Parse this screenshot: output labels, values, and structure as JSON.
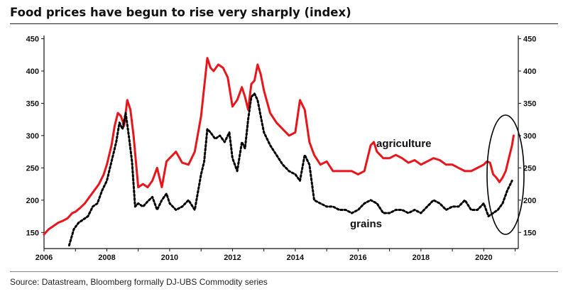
{
  "title": "Food prices have begun to rise very sharply (index)",
  "source": "Source: Datastream, Bloomberg formally DJ-UBS Commodity series",
  "colors": {
    "agriculture": "#e8151b",
    "grains": "#000000",
    "axis": "#111111"
  },
  "chart_data": {
    "type": "line",
    "title": "Food prices have begun to rise very sharply (index)",
    "xlabel": "",
    "ylabel": "",
    "xlim": [
      2006,
      2021.1
    ],
    "ylim": [
      125,
      455
    ],
    "xticks": [
      2006,
      2008,
      2010,
      2012,
      2014,
      2016,
      2018,
      2020
    ],
    "yticks": [
      150,
      200,
      250,
      300,
      350,
      400,
      450
    ],
    "ytick_labels": [
      "150",
      "200",
      "250",
      "300",
      "350",
      "400",
      "450"
    ],
    "y_axis_sides": [
      "left",
      "right"
    ],
    "grid": false,
    "annotation": "ellipse highlighting late-2020 rise",
    "series": [
      {
        "name": "agriculture",
        "style": "solid",
        "x": [
          2006.0,
          2006.15,
          2006.3,
          2006.45,
          2006.6,
          2006.75,
          2006.9,
          2007.0,
          2007.15,
          2007.3,
          2007.45,
          2007.6,
          2007.75,
          2007.9,
          2008.0,
          2008.15,
          2008.25,
          2008.35,
          2008.45,
          2008.55,
          2008.65,
          2008.75,
          2008.85,
          2009.0,
          2009.15,
          2009.3,
          2009.45,
          2009.6,
          2009.75,
          2009.9,
          2010.0,
          2010.2,
          2010.4,
          2010.6,
          2010.8,
          2011.0,
          2011.1,
          2011.2,
          2011.3,
          2011.4,
          2011.55,
          2011.7,
          2011.85,
          2012.0,
          2012.15,
          2012.3,
          2012.4,
          2012.5,
          2012.6,
          2012.7,
          2012.8,
          2012.9,
          2013.0,
          2013.2,
          2013.4,
          2013.6,
          2013.8,
          2014.0,
          2014.15,
          2014.3,
          2014.45,
          2014.6,
          2014.8,
          2015.0,
          2015.2,
          2015.4,
          2015.6,
          2015.8,
          2016.0,
          2016.2,
          2016.4,
          2016.5,
          2016.6,
          2016.8,
          2017.0,
          2017.2,
          2017.4,
          2017.6,
          2017.8,
          2018.0,
          2018.2,
          2018.4,
          2018.6,
          2018.8,
          2019.0,
          2019.2,
          2019.4,
          2019.6,
          2019.8,
          2020.0,
          2020.1,
          2020.2,
          2020.3,
          2020.4,
          2020.5,
          2020.6,
          2020.7,
          2020.8,
          2020.9,
          2020.95
        ],
        "y": [
          147,
          155,
          160,
          165,
          168,
          172,
          180,
          182,
          188,
          195,
          205,
          215,
          225,
          240,
          255,
          285,
          315,
          335,
          330,
          315,
          355,
          340,
          300,
          220,
          225,
          220,
          230,
          250,
          220,
          260,
          265,
          275,
          258,
          255,
          275,
          330,
          375,
          420,
          405,
          400,
          410,
          405,
          390,
          345,
          355,
          375,
          360,
          340,
          380,
          385,
          410,
          395,
          370,
          335,
          320,
          310,
          300,
          305,
          355,
          340,
          290,
          270,
          255,
          260,
          245,
          245,
          245,
          245,
          240,
          245,
          285,
          290,
          275,
          265,
          265,
          270,
          265,
          258,
          262,
          255,
          260,
          265,
          262,
          255,
          255,
          250,
          245,
          245,
          250,
          255,
          260,
          258,
          240,
          235,
          228,
          235,
          245,
          265,
          285,
          300
        ]
      },
      {
        "name": "grains",
        "style": "dotted",
        "x": [
          2006.8,
          2006.95,
          2007.1,
          2007.25,
          2007.4,
          2007.55,
          2007.7,
          2007.85,
          2008.0,
          2008.15,
          2008.3,
          2008.4,
          2008.5,
          2008.6,
          2008.7,
          2008.8,
          2008.9,
          2009.0,
          2009.15,
          2009.3,
          2009.45,
          2009.6,
          2009.75,
          2009.9,
          2010.0,
          2010.2,
          2010.4,
          2010.6,
          2010.8,
          2011.0,
          2011.1,
          2011.2,
          2011.3,
          2011.45,
          2011.6,
          2011.75,
          2011.9,
          2012.0,
          2012.15,
          2012.3,
          2012.4,
          2012.5,
          2012.6,
          2012.7,
          2012.8,
          2012.9,
          2013.0,
          2013.2,
          2013.4,
          2013.6,
          2013.8,
          2014.0,
          2014.15,
          2014.3,
          2014.45,
          2014.6,
          2014.8,
          2015.0,
          2015.2,
          2015.4,
          2015.6,
          2015.8,
          2016.0,
          2016.2,
          2016.4,
          2016.6,
          2016.8,
          2017.0,
          2017.2,
          2017.4,
          2017.6,
          2017.8,
          2018.0,
          2018.2,
          2018.4,
          2018.6,
          2018.8,
          2019.0,
          2019.2,
          2019.4,
          2019.6,
          2019.8,
          2020.0,
          2020.15,
          2020.3,
          2020.45,
          2020.6,
          2020.75,
          2020.9
        ],
        "y": [
          130,
          155,
          165,
          170,
          175,
          190,
          195,
          215,
          230,
          260,
          290,
          320,
          310,
          335,
          300,
          260,
          190,
          195,
          190,
          198,
          205,
          185,
          200,
          210,
          195,
          185,
          190,
          200,
          185,
          240,
          260,
          310,
          305,
          295,
          300,
          290,
          305,
          265,
          245,
          290,
          280,
          325,
          360,
          365,
          355,
          330,
          305,
          285,
          270,
          255,
          245,
          240,
          230,
          270,
          255,
          200,
          195,
          190,
          190,
          185,
          185,
          180,
          185,
          195,
          200,
          195,
          180,
          180,
          185,
          185,
          180,
          185,
          180,
          190,
          200,
          195,
          185,
          190,
          190,
          200,
          185,
          185,
          195,
          175,
          180,
          185,
          195,
          215,
          230
        ]
      }
    ]
  }
}
